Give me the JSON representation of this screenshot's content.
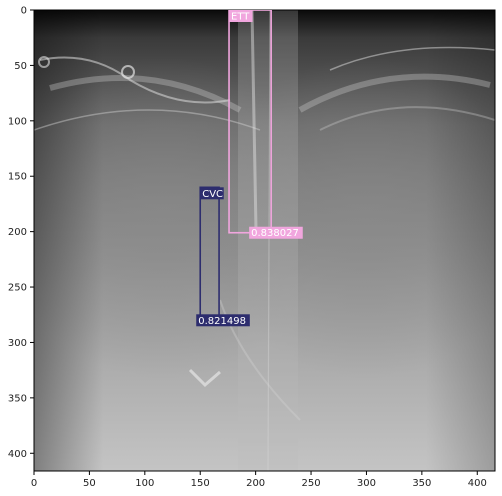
{
  "image": {
    "subject": "chest-xray",
    "x_range": [
      0,
      416
    ],
    "y_range": [
      0,
      416
    ],
    "x_ticks": [
      "0",
      "50",
      "100",
      "150",
      "200",
      "250",
      "300",
      "350",
      "400"
    ],
    "y_ticks": [
      "0",
      "50",
      "100",
      "150",
      "200",
      "250",
      "300",
      "350",
      "400"
    ]
  },
  "detections": [
    {
      "label": "ETT",
      "score": "0.838027",
      "color": "#f1a6de",
      "x0": 176,
      "y0": 0,
      "x1": 214,
      "y1": 201
    },
    {
      "label": "CVC",
      "score": "0.821498",
      "color": "#2d2d6e",
      "x0": 150,
      "y0": 160,
      "x1": 167,
      "y1": 280
    }
  ]
}
